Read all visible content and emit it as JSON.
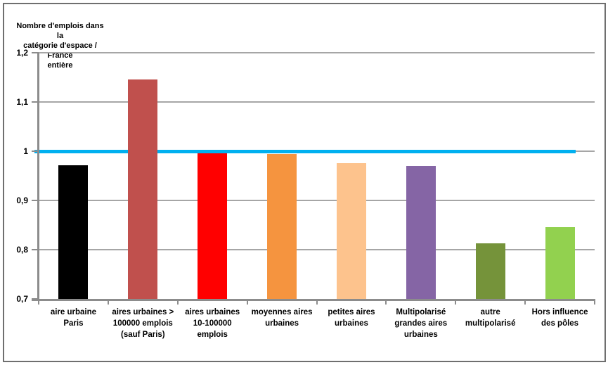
{
  "window": {
    "background_color": "#FFFFFF",
    "frame_border_color": "#6F6F6F"
  },
  "chart_data": {
    "type": "bar",
    "axis_title": "Nombre d'emplois dans la\ncatégorie d'espace / France\nentière",
    "categories": [
      "aire urbaine\nParis",
      "aires urbaines >\n100000 emplois\n(sauf Paris)",
      "aires urbaines\n10-100000\nemplois",
      "moyennes aires\nurbaines",
      "petites aires\nurbaines",
      "Multipolarisé\ngrandes aires\nurbaines",
      "autre\nmultipolarisé",
      "Hors influence\ndes pôles"
    ],
    "values": [
      0.972,
      1.146,
      0.996,
      0.995,
      0.976,
      0.97,
      0.813,
      0.846
    ],
    "bar_colors": [
      "#000000",
      "#C0504D",
      "#FF0000",
      "#F5943F",
      "#FDC38D",
      "#8565A5",
      "#75933A",
      "#92D14F"
    ],
    "ylim": [
      0.7,
      1.2
    ],
    "yticks": [
      {
        "value": 1.2,
        "label": "1,2"
      },
      {
        "value": 1.1,
        "label": "1,1"
      },
      {
        "value": 1.0,
        "label": "1"
      },
      {
        "value": 0.9,
        "label": "0,9"
      },
      {
        "value": 0.8,
        "label": "0,8"
      },
      {
        "value": 0.7,
        "label": "0,7"
      }
    ],
    "reference_line": {
      "value": 1.0,
      "color": "#00B0F0"
    },
    "grid": true,
    "legend": false,
    "styling": {
      "gridline_color": "#A6A6A6",
      "axis_color": "#8C8C8C",
      "text_color": "#000000"
    }
  }
}
